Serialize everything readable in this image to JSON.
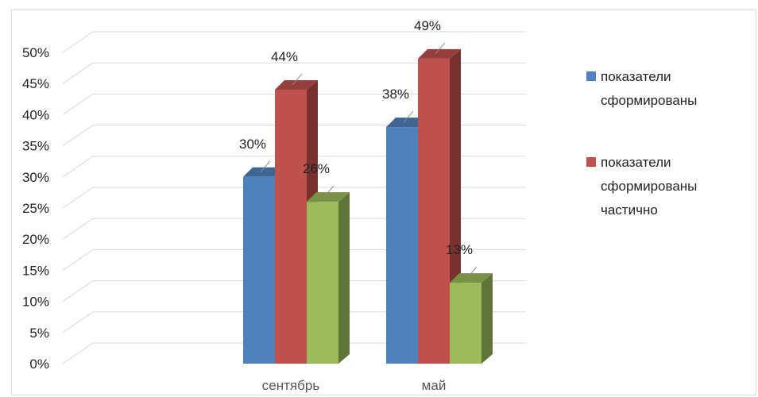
{
  "chart_data": {
    "type": "bar",
    "title": "",
    "xlabel": "",
    "ylabel": "",
    "categories": [
      "сентябрь",
      "май"
    ],
    "series": [
      {
        "name": "показатели сформированы",
        "values": [
          30,
          38
        ],
        "labels": [
          "30%",
          "38%"
        ],
        "color": "#4f81bd"
      },
      {
        "name": "показатели сформированы частично",
        "values": [
          44,
          49
        ],
        "labels": [
          "44%",
          "49%"
        ],
        "color": "#c0504d"
      },
      {
        "name": "",
        "values": [
          26,
          13
        ],
        "labels": [
          "26%",
          "13%"
        ],
        "color": "#9bbb59"
      }
    ],
    "ylim": [
      0,
      50
    ],
    "yticks": [
      "0%",
      "5%",
      "10%",
      "15%",
      "20%",
      "25%",
      "30%",
      "35%",
      "40%",
      "45%",
      "50%"
    ],
    "grid": true,
    "legend_position": "right",
    "legend": [
      {
        "lines": [
          "показатели",
          "сформированы"
        ]
      },
      {
        "lines": [
          "показатели",
          "сформированы",
          "частично"
        ]
      }
    ]
  }
}
